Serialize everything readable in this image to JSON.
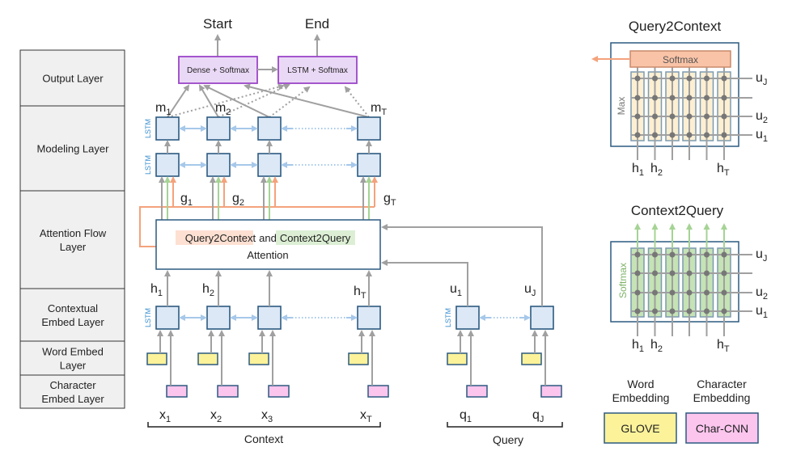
{
  "layers": [
    {
      "lines": [
        "Output Layer"
      ]
    },
    {
      "lines": [
        "Modeling Layer"
      ]
    },
    {
      "lines": [
        "Attention Flow",
        "Layer"
      ]
    },
    {
      "lines": [
        "Contextual",
        "Embed Layer"
      ]
    },
    {
      "lines": [
        "Word Embed",
        "Layer"
      ]
    },
    {
      "lines": [
        "Character",
        "Embed Layer"
      ]
    }
  ],
  "outputs": {
    "start": "Start",
    "end": "End"
  },
  "output_boxes": {
    "dense": "Dense + Softmax",
    "lstm": "LSTM + Softmax"
  },
  "lstm_label": "LSTM",
  "m_labels": [
    {
      "b": "m",
      "s": "1"
    },
    {
      "b": "m",
      "s": "2"
    },
    {
      "b": "m",
      "s": "T"
    }
  ],
  "g_labels": [
    {
      "b": "g",
      "s": "1"
    },
    {
      "b": "g",
      "s": "2"
    },
    {
      "b": "g",
      "s": "T"
    }
  ],
  "h_labels": [
    {
      "b": "h",
      "s": "1"
    },
    {
      "b": "h",
      "s": "2"
    },
    {
      "b": "h",
      "s": "T"
    }
  ],
  "u_labels": [
    {
      "b": "u",
      "s": "1"
    },
    {
      "b": "u",
      "s": "J"
    }
  ],
  "x_labels": [
    {
      "b": "x",
      "s": "1"
    },
    {
      "b": "x",
      "s": "2"
    },
    {
      "b": "x",
      "s": "3"
    },
    {
      "b": "x",
      "s": "T"
    }
  ],
  "q_labels": [
    {
      "b": "q",
      "s": "1"
    },
    {
      "b": "q",
      "s": "J"
    }
  ],
  "attention": {
    "q2c": "Query2Context",
    "and": "and",
    "c2q": "Context2Query",
    "line2": "Attention"
  },
  "groups": {
    "context": "Context",
    "query": "Query"
  },
  "q2c_panel": {
    "title": "Query2Context",
    "softmax": "Softmax",
    "side": "Max",
    "u_labels": [
      {
        "b": "u",
        "s": "J"
      },
      {
        "b": "u",
        "s": "2"
      },
      {
        "b": "u",
        "s": "1"
      }
    ],
    "h_labels": [
      {
        "b": "h",
        "s": "1"
      },
      {
        "b": "h",
        "s": "2"
      },
      {
        "b": "h",
        "s": "T"
      }
    ]
  },
  "c2q_panel": {
    "title": "Context2Query",
    "side": "Softmax",
    "u_labels": [
      {
        "b": "u",
        "s": "J"
      },
      {
        "b": "u",
        "s": "2"
      },
      {
        "b": "u",
        "s": "1"
      }
    ],
    "h_labels": [
      {
        "b": "h",
        "s": "1"
      },
      {
        "b": "h",
        "s": "2"
      },
      {
        "b": "h",
        "s": "T"
      }
    ]
  },
  "legend": {
    "word": [
      "Word",
      "Embedding"
    ],
    "char": [
      "Character",
      "Embedding"
    ],
    "glove": "GLOVE",
    "charcnn": "Char-CNN"
  },
  "colors": {
    "lstm_fill": "#dce8f6",
    "output_box": "#9b45c9",
    "word_embed": "#fbf29a",
    "char_embed": "#fbc5ee",
    "q2c": "#f4a27c",
    "c2q": "#a5d394",
    "q2c_column": "#fdefd2",
    "c2q_column": "#c5e3b5"
  }
}
